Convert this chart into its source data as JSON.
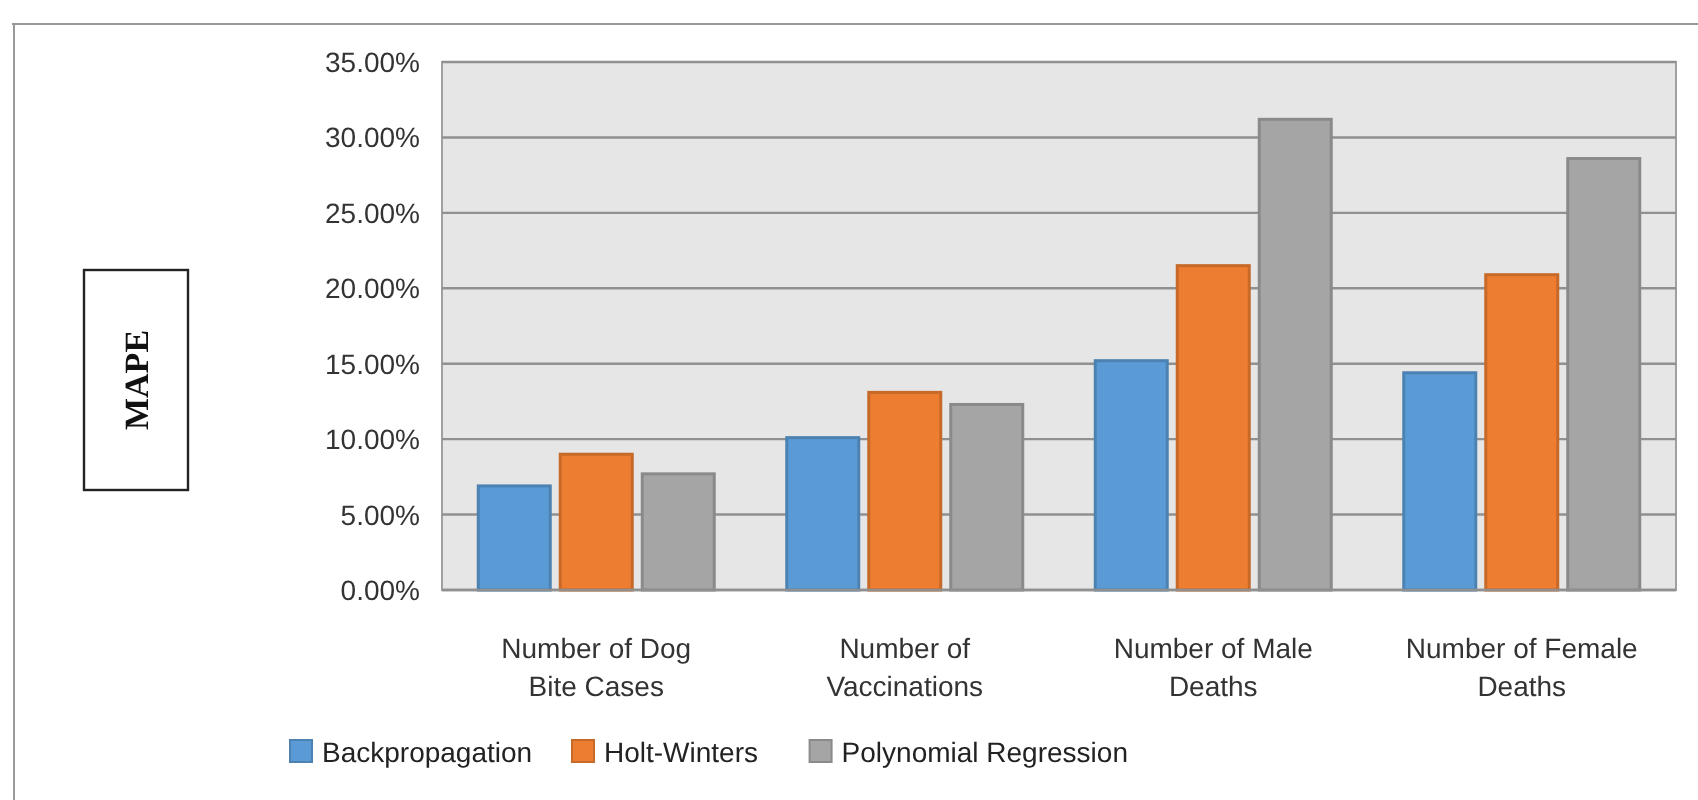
{
  "chart_data": {
    "type": "bar",
    "ylabel": "MAPE",
    "categories": [
      "Number of Dog Bite Cases",
      "Number of Vaccinations",
      "Number of Male Deaths",
      "Number of Female Deaths"
    ],
    "series": [
      {
        "name": "Backpropagation",
        "color": "#5b9bd5",
        "values": [
          6.9,
          10.1,
          15.2,
          14.4
        ]
      },
      {
        "name": "Holt-Winters",
        "color": "#ed7d31",
        "values": [
          9.0,
          13.1,
          21.5,
          20.9
        ]
      },
      {
        "name": "Polynomial Regression",
        "color": "#a5a5a5",
        "values": [
          7.7,
          12.3,
          31.2,
          28.6
        ]
      }
    ],
    "ylim": [
      0,
      35
    ],
    "yticks": [
      {
        "value": 0,
        "label": "0.00%"
      },
      {
        "value": 5,
        "label": "5.00%"
      },
      {
        "value": 10,
        "label": "10.00%"
      },
      {
        "value": 15,
        "label": "15.00%"
      },
      {
        "value": 20,
        "label": "20.00%"
      },
      {
        "value": 25,
        "label": "25.00%"
      },
      {
        "value": 30,
        "label": "30.00%"
      },
      {
        "value": 35,
        "label": "35.00%"
      }
    ],
    "grid": "y",
    "legend": "bottom"
  }
}
